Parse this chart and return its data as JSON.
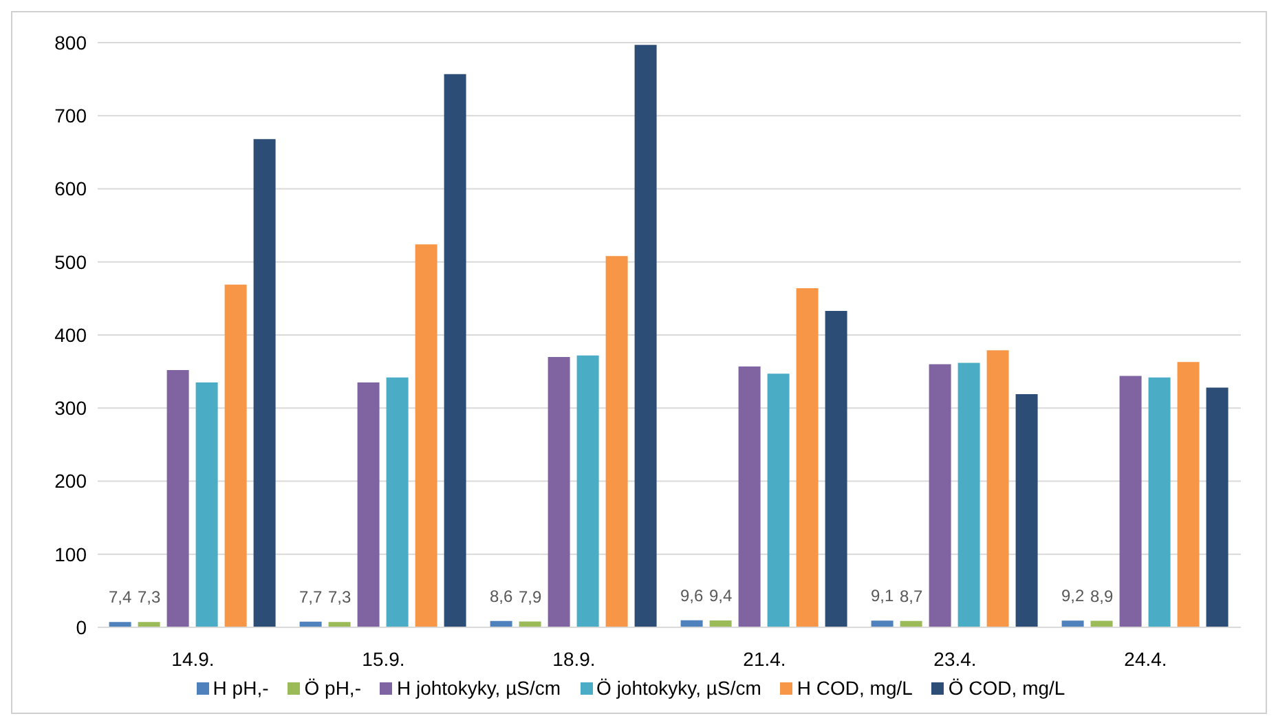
{
  "chart_data": {
    "type": "bar",
    "categories": [
      "14.9.",
      "15.9.",
      "18.9.",
      "21.4.",
      "23.4.",
      "24.4."
    ],
    "series": [
      {
        "name": "H pH,-",
        "color": "#4f81bd",
        "values": [
          7.4,
          7.7,
          8.6,
          9.6,
          9.1,
          9.2
        ],
        "value_labels": [
          "7,4",
          "7,7",
          "8,6",
          "9,6",
          "9,1",
          "9,2"
        ]
      },
      {
        "name": "Ö pH,-",
        "color": "#9bbb59",
        "values": [
          7.3,
          7.3,
          7.9,
          9.4,
          8.7,
          8.9
        ],
        "value_labels": [
          "7,3",
          "7,3",
          "7,9",
          "9,4",
          "8,7",
          "8,9"
        ]
      },
      {
        "name": "H johtokyky, µS/cm",
        "color": "#8064a2",
        "values": [
          352,
          335,
          370,
          357,
          360,
          344
        ]
      },
      {
        "name": "Ö johtokyky, µS/cm",
        "color": "#4bacc6",
        "values": [
          335,
          342,
          372,
          347,
          362,
          342
        ]
      },
      {
        "name": "H COD, mg/L",
        "color": "#f79646",
        "values": [
          469,
          524,
          508,
          464,
          379,
          363
        ]
      },
      {
        "name": "Ö COD, mg/L",
        "color": "#2c4d75",
        "values": [
          668,
          757,
          797,
          433,
          319,
          328
        ]
      }
    ],
    "ylim": [
      0,
      800
    ],
    "yticks": [
      0,
      100,
      200,
      300,
      400,
      500,
      600,
      700,
      800
    ],
    "grid": "y",
    "legend": "bottom"
  }
}
